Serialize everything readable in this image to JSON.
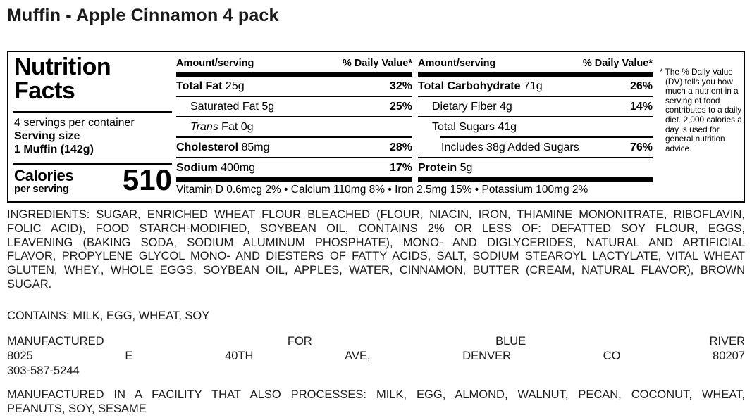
{
  "page_title": "Muffin - Apple Cinnamon 4 pack",
  "label": {
    "title_line1": "Nutrition",
    "title_line2": "Facts",
    "servings_per_container": "4 servings per container",
    "serving_size_label": "Serving size",
    "serving_size_value": "1 Muffin (142g)",
    "calories_label": "Calories",
    "calories_sublabel": "per serving",
    "calories_value": "510",
    "col_header_amount": "Amount/serving",
    "col_header_dv": "% Daily Value*",
    "columns": [
      {
        "rows": [
          {
            "name": "Total Fat",
            "bold": true,
            "italic": false,
            "amount": "25g",
            "dv": "32%",
            "indent": 0,
            "sep": "rule"
          },
          {
            "name": "Saturated Fat",
            "bold": false,
            "italic": false,
            "amount": "5g",
            "dv": "25%",
            "indent": 1,
            "sep": "rule"
          },
          {
            "name": "Trans",
            "bold": false,
            "italic": true,
            "amount": "Fat 0g",
            "dv": "",
            "indent": 1,
            "sep": "rule"
          },
          {
            "name": "Cholesterol",
            "bold": true,
            "italic": false,
            "amount": "85mg",
            "dv": "28%",
            "indent": 0,
            "sep": "rule"
          },
          {
            "name": "Sodium",
            "bold": true,
            "italic": false,
            "amount": "400mg",
            "dv": "17%",
            "indent": 0,
            "sep": "bar"
          }
        ]
      },
      {
        "rows": [
          {
            "name": "Total Carbohydrate",
            "bold": true,
            "italic": false,
            "amount": "71g",
            "dv": "26%",
            "indent": 0,
            "sep": "rule"
          },
          {
            "name": "Dietary Fiber",
            "bold": false,
            "italic": false,
            "amount": "4g",
            "dv": "14%",
            "indent": 1,
            "sep": "rule"
          },
          {
            "name": "Total Sugars",
            "bold": false,
            "italic": false,
            "amount": "41g",
            "dv": "",
            "indent": 1,
            "sep": "rule-indented"
          },
          {
            "name": "Includes 38g Added Sugars",
            "bold": false,
            "italic": false,
            "amount": "",
            "dv": "76%",
            "indent": 2,
            "sep": "rule"
          },
          {
            "name": "Protein",
            "bold": true,
            "italic": false,
            "amount": "5g",
            "dv": "",
            "indent": 0,
            "sep": "bar"
          }
        ]
      }
    ],
    "micronutrients": "Vitamin D 0.6mcg 2% • Calcium 110mg 8% • Iron 2.5mg 15% • Potassium 100mg 2%",
    "footnote": "* The % Daily Value (DV) tells you how much a nutrient in a serving of food contributes to a daily diet. 2,000 calories a day is used for general nutrition advice."
  },
  "ingredients": {
    "lines": [
      "INGREDIENTS: SUGAR, ENRICHED WHEAT FLOUR BLEACHED (FLOUR, NIACIN, IRON, THIAMINE MONONITRATE, RIBOFLAVIN,",
      "FOLIC ACID), FOOD STARCH-MODIFIED, SOYBEAN OIL, CONTAINS 2% OR LESS OF: DEFATTED SOY FLOUR, EGGS,",
      "LEAVENING (BAKING SODA, SODIUM ALUMINUM PHOSPHATE), MONO- AND DIGLYCERIDES, NATURAL AND ARTIFICIAL",
      "FLAVOR, PROPYLENE GLYCOL MONO- AND DIESTERS OF FATTY ACIDS, SALT, SODIUM STEAROYL LACTYLATE, VITAL WHEAT",
      "GLUTEN, WHEY., WHOLE EGGS, SOYBEAN OIL, APPLES, WATER, CINNAMON, BUTTER (CREAM, NATURAL FLAVOR), BROWN",
      "SUGAR."
    ]
  },
  "contains": "CONTAINS: MILK, EGG, WHEAT, SOY",
  "manufacturer": {
    "lines": [
      "MANUFACTURED FOR BLUE RIVER",
      "8025 E 40TH AVE, DENVER CO 80207",
      "303-587-5244"
    ]
  },
  "facility": {
    "lines": [
      "MANUFACTURED IN A FACILITY THAT ALSO PROCESSES: MILK, EGG, ALMOND, WALNUT, PECAN, COCONUT, WHEAT,",
      "PEANUTS, SOY, SESAME"
    ]
  },
  "colors": {
    "text": "#000000",
    "background": "#ffffff"
  }
}
